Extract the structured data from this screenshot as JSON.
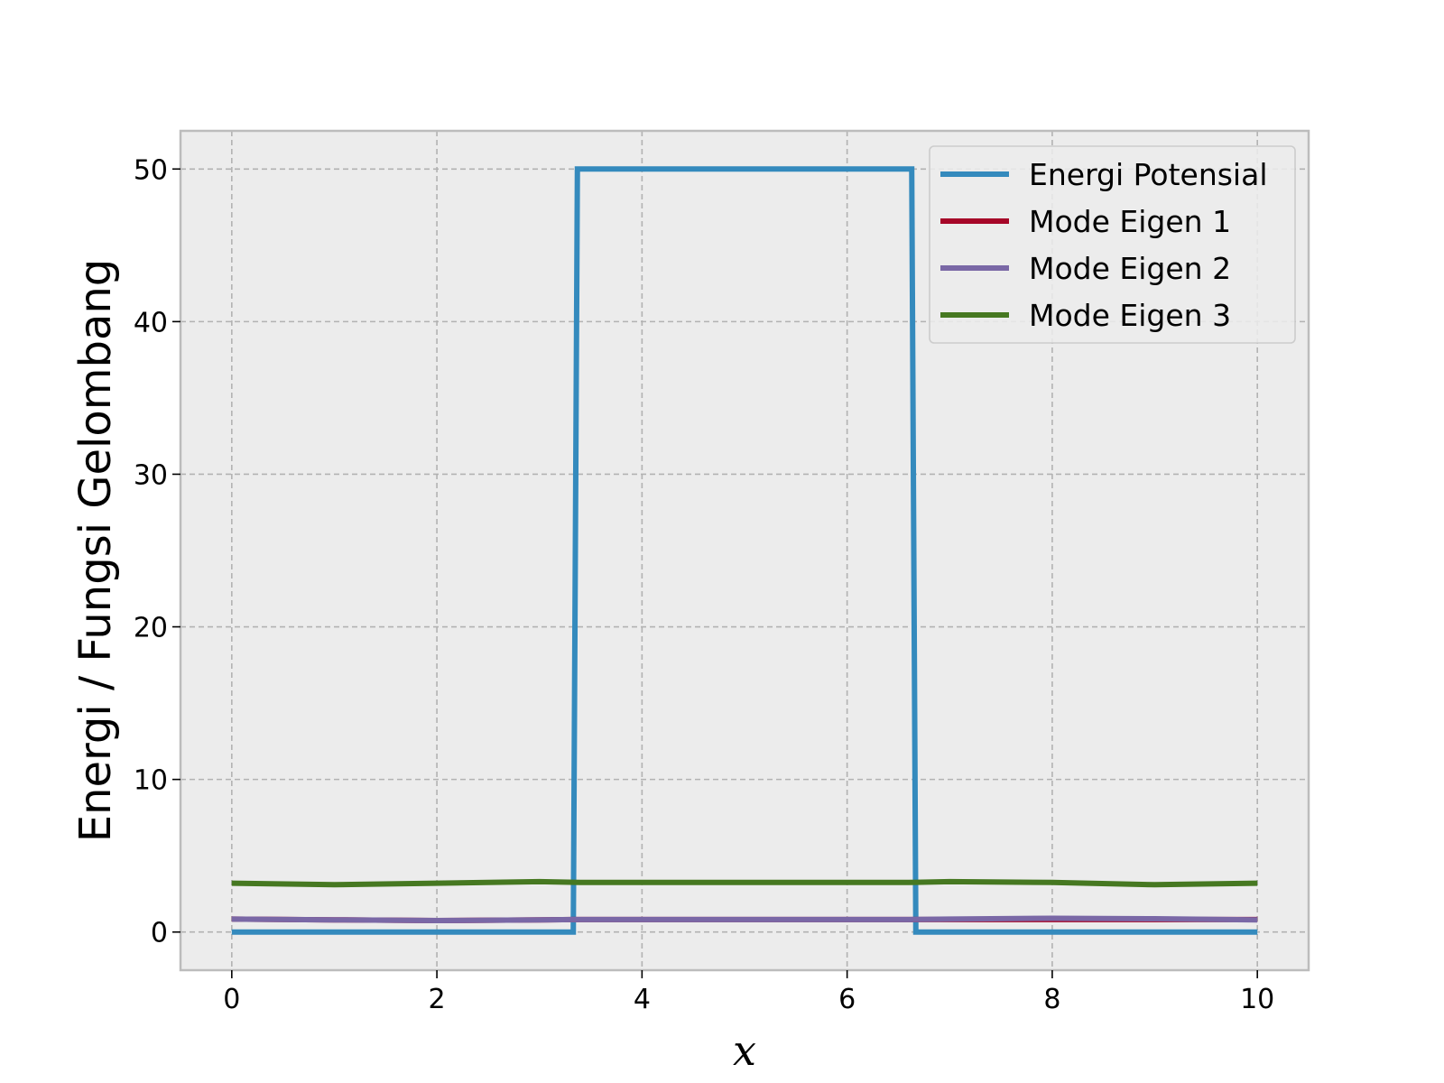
{
  "chart_data": {
    "type": "line",
    "title": "",
    "xlabel": "x",
    "ylabel": "Energi / Fungsi Gelombang",
    "xlim": [
      -0.5,
      10.5
    ],
    "ylim": [
      -2.5,
      52.5
    ],
    "xticks": [
      0,
      2,
      4,
      6,
      8,
      10
    ],
    "yticks": [
      0,
      10,
      20,
      30,
      40,
      50
    ],
    "grid": true,
    "legend_position": "top-right",
    "colors": {
      "plot_background": "#ececec",
      "axes_edge": "#bcbcbc",
      "grid": "#b2b2b2"
    },
    "series": [
      {
        "name": "Energi Potensial",
        "color": "#348abd",
        "x": [
          0,
          3.33,
          3.33,
          3.37,
          3.37,
          6.63,
          6.63,
          6.67,
          6.67,
          10
        ],
        "y": [
          0,
          0,
          0,
          50,
          50,
          50,
          50,
          0,
          0,
          0
        ]
      },
      {
        "name": "Mode Eigen 1",
        "color": "#a60628",
        "x": [
          0,
          1,
          2,
          3,
          3.4,
          4,
          5,
          6,
          6.6,
          7,
          8,
          9,
          10
        ],
        "y": [
          0.85,
          0.8,
          0.75,
          0.8,
          0.82,
          0.82,
          0.82,
          0.82,
          0.82,
          0.82,
          0.82,
          0.82,
          0.82
        ]
      },
      {
        "name": "Mode Eigen 2",
        "color": "#7a68a6",
        "x": [
          0,
          1,
          2,
          3,
          3.4,
          4,
          5,
          6,
          6.6,
          7,
          8,
          9,
          10
        ],
        "y": [
          0.85,
          0.8,
          0.75,
          0.8,
          0.82,
          0.82,
          0.82,
          0.82,
          0.82,
          0.85,
          0.9,
          0.87,
          0.8
        ]
      },
      {
        "name": "Mode Eigen 3",
        "color": "#467821",
        "x": [
          0,
          1,
          2,
          3,
          3.4,
          4,
          5,
          6,
          6.6,
          7,
          8,
          9,
          10
        ],
        "y": [
          3.2,
          3.1,
          3.2,
          3.3,
          3.25,
          3.25,
          3.25,
          3.25,
          3.25,
          3.3,
          3.25,
          3.1,
          3.2
        ]
      }
    ]
  }
}
